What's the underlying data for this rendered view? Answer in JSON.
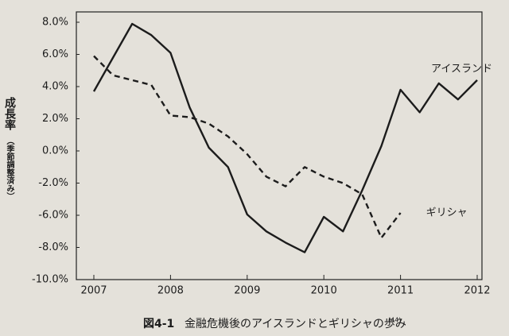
{
  "chart_data": {
    "type": "line",
    "ylabel": "成長率",
    "ylabel_note": "（季節調整済み）",
    "figure_number": "図4-1",
    "caption": "金融危機後のアイスランドとギリシャの歩み",
    "note_ref": "(44)",
    "x": [
      2007,
      2007.25,
      2007.5,
      2007.75,
      2008,
      2008.25,
      2008.5,
      2008.75,
      2009,
      2009.25,
      2009.5,
      2009.75,
      2010,
      2010.25,
      2010.5,
      2010.75,
      2011,
      2011.25,
      2011.5,
      2011.75,
      2012
    ],
    "xlim": [
      2007,
      2012
    ],
    "xticks": [
      2007,
      2008,
      2009,
      2010,
      2011,
      2012
    ],
    "ylim": [
      -10,
      8
    ],
    "yticks": [
      {
        "value": 8,
        "label": "8.0%"
      },
      {
        "value": 6,
        "label": "6.0%"
      },
      {
        "value": 4,
        "label": "4.0%"
      },
      {
        "value": 2,
        "label": "2.0%"
      },
      {
        "value": 0,
        "label": "0.0%"
      },
      {
        "value": -2,
        "label": "-2.0%"
      },
      {
        "value": -6,
        "label": "-6.0%"
      },
      {
        "value": -8,
        "label": "-8.0%"
      },
      {
        "value": -10,
        "label": "-10.0%"
      }
    ],
    "series": [
      {
        "name": "アイスランド",
        "color": "#1c1c1c",
        "line_style": "solid",
        "values": [
          3.7,
          5.8,
          7.9,
          7.2,
          6.1,
          2.7,
          0.2,
          -1.0,
          -5.9,
          -7.0,
          -7.7,
          -8.3,
          -6.1,
          -7.0,
          -2.9,
          0.3,
          3.8,
          2.4,
          4.2,
          3.2,
          4.4
        ]
      },
      {
        "name": "ギリシャ",
        "color": "#1c1c1c",
        "line_style": "dashed",
        "values": [
          5.9,
          4.7,
          4.4,
          4.1,
          2.2,
          2.1,
          1.7,
          0.9,
          -0.2,
          -1.6,
          -2.4,
          -1.0,
          -1.6,
          -2.0,
          -3.4,
          -7.4,
          -5.7,
          null,
          null,
          null,
          null
        ]
      }
    ]
  }
}
